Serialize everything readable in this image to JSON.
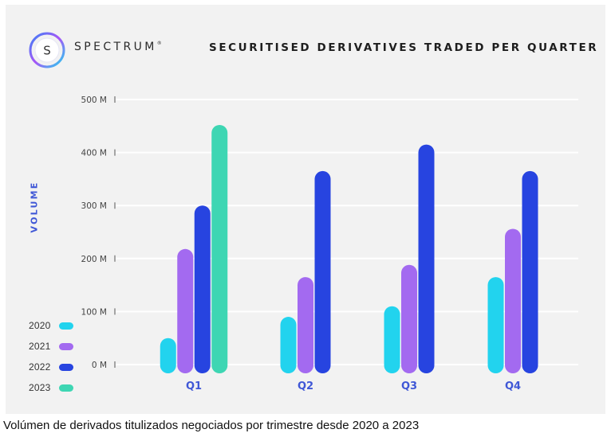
{
  "header": {
    "brand_name": "SPECTRUM",
    "brand_mark": "®",
    "logo_letter": "S"
  },
  "colors": {
    "2020": "#22d3ee",
    "2021": "#a36af0",
    "2022": "#2744e0",
    "2023": "#3ed6b3",
    "axis_label": "#3f57d6",
    "grid": "#ffffff"
  },
  "chart_data": {
    "type": "bar",
    "title": "SECURITISED DERIVATIVES TRADED PER QUARTER",
    "xlabel": "",
    "ylabel": "VOLUME",
    "categories": [
      "Q1",
      "Q2",
      "Q3",
      "Q4"
    ],
    "series": [
      {
        "name": "2020",
        "values": [
          50,
          90,
          110,
          165
        ]
      },
      {
        "name": "2021",
        "values": [
          218,
          165,
          188,
          256
        ]
      },
      {
        "name": "2022",
        "values": [
          300,
          365,
          415,
          365
        ]
      },
      {
        "name": "2023",
        "values": [
          452,
          null,
          null,
          null
        ]
      }
    ],
    "ylim": [
      0,
      500
    ],
    "yticks": [
      0,
      100,
      200,
      300,
      400,
      500
    ],
    "ytick_labels": [
      "0 M",
      "100 M",
      "200 M",
      "300 M",
      "400 M",
      "500 M"
    ],
    "grid": true,
    "legend_position": "bottom-left"
  },
  "caption": "Volúmen de derivados titulizados negociados por trimestre desde 2020 a 2023"
}
